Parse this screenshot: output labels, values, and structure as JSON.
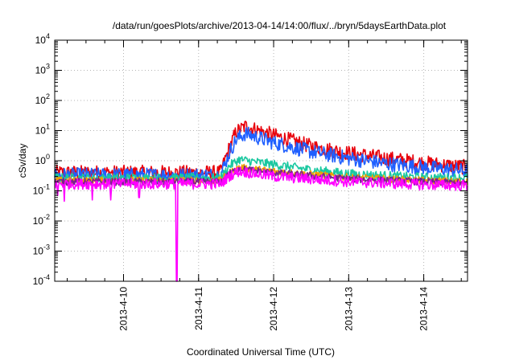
{
  "chart_data": {
    "type": "line",
    "title": "/data/run/goesPlots/archive/2013-04-14/14:00/flux/../bryn/5daysEarthData.plot",
    "xlabel": "Coordinated Universal Time (UTC)",
    "ylabel": "cSv/day",
    "yscale": "log",
    "ylim": [
      0.0001,
      10000
    ],
    "xlim": [
      "2013-04-09 02:00",
      "2013-04-14 14:00"
    ],
    "x_ticks": [
      "2013-4-10",
      "2013-4-11",
      "2013-4-12",
      "2013-4-13",
      "2013-4-14"
    ],
    "y_ticks": [
      {
        "base": "10",
        "exp": "-4",
        "value": 0.0001
      },
      {
        "base": "10",
        "exp": "-3",
        "value": 0.001
      },
      {
        "base": "10",
        "exp": "-2",
        "value": 0.01
      },
      {
        "base": "10",
        "exp": "-1",
        "value": 0.1
      },
      {
        "base": "10",
        "exp": "0",
        "value": 1
      },
      {
        "base": "10",
        "exp": "1",
        "value": 10
      },
      {
        "base": "10",
        "exp": "2",
        "value": 100
      },
      {
        "base": "10",
        "exp": "3",
        "value": 1000
      },
      {
        "base": "10",
        "exp": "4",
        "value": 10000
      }
    ],
    "grid": true,
    "legend": "none",
    "series": [
      {
        "color": "#e8000b",
        "x": [
          "2013-04-09 02:00",
          "2013-04-10 00:00",
          "2013-04-11 00:00",
          "2013-04-11 07:00",
          "2013-04-11 10:00",
          "2013-04-11 12:00",
          "2013-04-11 15:00",
          "2013-04-12 00:00",
          "2013-04-12 12:00",
          "2013-04-13 00:00",
          "2013-04-13 12:00",
          "2013-04-14 00:00",
          "2013-04-14 14:00"
        ],
        "y": [
          0.4,
          0.4,
          0.4,
          0.4,
          3,
          9,
          14,
          7,
          3,
          1.8,
          1.2,
          0.85,
          0.6
        ],
        "noise": 0.25
      },
      {
        "color": "#1f5fff",
        "x": [
          "2013-04-09 02:00",
          "2013-04-10 00:00",
          "2013-04-11 00:00",
          "2013-04-11 07:00",
          "2013-04-11 10:00",
          "2013-04-11 12:00",
          "2013-04-11 15:00",
          "2013-04-12 00:00",
          "2013-04-12 12:00",
          "2013-04-13 00:00",
          "2013-04-13 12:00",
          "2013-04-14 00:00",
          "2013-04-14 14:00"
        ],
        "y": [
          0.33,
          0.33,
          0.33,
          0.33,
          2,
          5,
          8,
          4,
          2,
          1.2,
          0.8,
          0.6,
          0.45
        ],
        "noise": 0.25
      },
      {
        "color": "#1ac8a0",
        "x": [
          "2013-04-09 02:00",
          "2013-04-10 00:00",
          "2013-04-11 00:00",
          "2013-04-11 07:00",
          "2013-04-11 10:00",
          "2013-04-11 13:00",
          "2013-04-12 00:00",
          "2013-04-12 12:00",
          "2013-04-13 00:00",
          "2013-04-13 12:00",
          "2013-04-14 00:00",
          "2013-04-14 14:00"
        ],
        "y": [
          0.27,
          0.27,
          0.27,
          0.27,
          0.7,
          1.1,
          0.75,
          0.5,
          0.37,
          0.32,
          0.28,
          0.27
        ],
        "noise": 0.15
      },
      {
        "color": "#f0a000",
        "x": [
          "2013-04-09 02:00",
          "2013-04-10 00:00",
          "2013-04-11 00:00",
          "2013-04-11 07:00",
          "2013-04-11 10:00",
          "2013-04-11 13:00",
          "2013-04-12 00:00",
          "2013-04-13 00:00",
          "2013-04-14 00:00",
          "2013-04-14 14:00"
        ],
        "y": [
          0.22,
          0.22,
          0.22,
          0.22,
          0.4,
          0.6,
          0.45,
          0.28,
          0.22,
          0.2
        ],
        "noise": 0.12
      },
      {
        "color": "#7a2090",
        "x": [
          "2013-04-09 02:00",
          "2013-04-10 00:00",
          "2013-04-11 00:00",
          "2013-04-11 07:00",
          "2013-04-11 10:00",
          "2013-04-11 13:00",
          "2013-04-12 00:00",
          "2013-04-13 00:00",
          "2013-04-14 00:00",
          "2013-04-14 14:00"
        ],
        "y": [
          0.2,
          0.2,
          0.2,
          0.2,
          0.38,
          0.55,
          0.4,
          0.25,
          0.2,
          0.18
        ],
        "noise": 0.12
      },
      {
        "color": "#ff00ff",
        "x": [
          "2013-04-09 02:00",
          "2013-04-10 00:00",
          "2013-04-11 00:00",
          "2013-04-11 07:00",
          "2013-04-11 10:00",
          "2013-04-11 13:00",
          "2013-04-12 00:00",
          "2013-04-13 00:00",
          "2013-04-14 00:00",
          "2013-04-14 14:00"
        ],
        "y": [
          0.17,
          0.17,
          0.17,
          0.17,
          0.32,
          0.45,
          0.3,
          0.2,
          0.16,
          0.15
        ],
        "noise": 0.18,
        "dips": [
          {
            "x": "2013-04-09 03:00",
            "y": 0.07
          },
          {
            "x": "2013-04-09 05:00",
            "y": 0.045
          },
          {
            "x": "2013-04-09 14:00",
            "y": 0.05
          },
          {
            "x": "2013-04-09 20:00",
            "y": 0.05
          },
          {
            "x": "2013-04-10 05:00",
            "y": 0.06
          },
          {
            "x": "2013-04-10 17:00",
            "y": 0.0001
          }
        ]
      }
    ]
  }
}
